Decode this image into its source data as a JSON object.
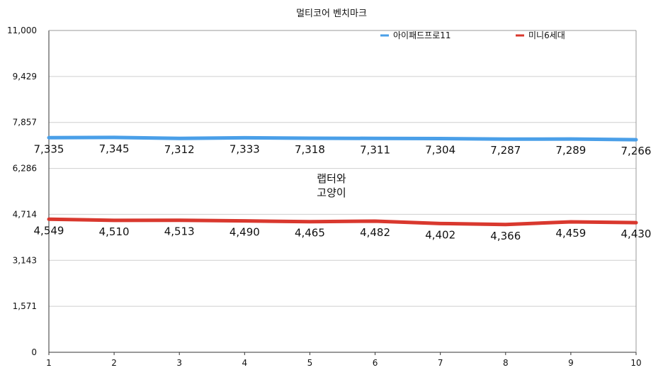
{
  "chart_data": {
    "type": "line",
    "title": "멀티코어 벤치마크",
    "xlabel": "",
    "ylabel": "",
    "categories": [
      "1",
      "2",
      "3",
      "4",
      "5",
      "6",
      "7",
      "8",
      "9",
      "10"
    ],
    "ylim": [
      0,
      11000
    ],
    "yticks": [
      "0",
      "1,571",
      "3,143",
      "4,714",
      "6,286",
      "7,857",
      "9,429",
      "11,000"
    ],
    "ytick_values": [
      0,
      1571.4,
      3142.9,
      4714.3,
      6285.7,
      7857.1,
      9428.6,
      11000
    ],
    "grid": true,
    "legend_position": "top-right",
    "series": [
      {
        "name": "아이패드프로11",
        "color": "#4a9fe8",
        "values": [
          7335,
          7345,
          7312,
          7333,
          7318,
          7311,
          7304,
          7287,
          7289,
          7266
        ],
        "labels": [
          "7,335",
          "7,345",
          "7,312",
          "7,333",
          "7,318",
          "7,311",
          "7,304",
          "7,287",
          "7,289",
          "7,266"
        ]
      },
      {
        "name": "미니6세대",
        "color": "#d9382e",
        "values": [
          4549,
          4510,
          4513,
          4490,
          4465,
          4482,
          4402,
          4366,
          4459,
          4430
        ],
        "labels": [
          "4,549",
          "4,510",
          "4,513",
          "4,490",
          "4,465",
          "4,482",
          "4,402",
          "4,366",
          "4,459",
          "4,430"
        ]
      }
    ]
  },
  "watermark": {
    "line1": "랩터와",
    "line2": "고양이"
  }
}
